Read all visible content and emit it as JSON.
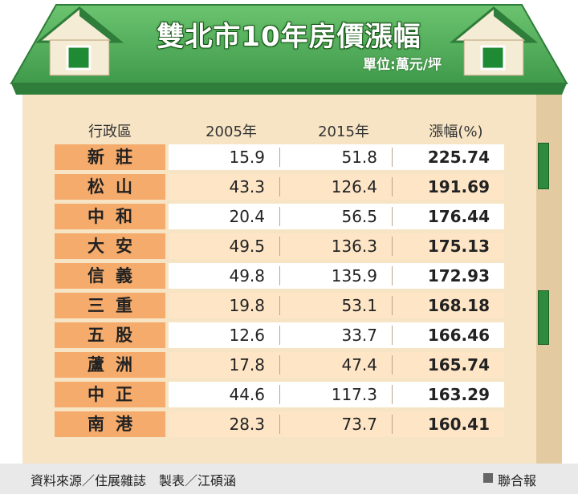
{
  "title": "雙北市10年房價漲幅",
  "unit": "單位:萬元/坪",
  "headers": [
    "行政區",
    "2005年",
    "2015年",
    "漲幅(%)"
  ],
  "rows": [
    {
      "district": "新莊",
      "y2005": "15.9",
      "y2015": "51.8",
      "change": "225.74"
    },
    {
      "district": "松山",
      "y2005": "43.3",
      "y2015": "126.4",
      "change": "191.69"
    },
    {
      "district": "中和",
      "y2005": "20.4",
      "y2015": "56.5",
      "change": "176.44"
    },
    {
      "district": "大安",
      "y2005": "49.5",
      "y2015": "136.3",
      "change": "175.13"
    },
    {
      "district": "信義",
      "y2005": "49.8",
      "y2015": "135.9",
      "change": "172.93"
    },
    {
      "district": "三重",
      "y2005": "19.8",
      "y2015": "53.1",
      "change": "168.18"
    },
    {
      "district": "五股",
      "y2005": "12.6",
      "y2015": "33.7",
      "change": "166.46"
    },
    {
      "district": "蘆洲",
      "y2005": "17.8",
      "y2015": "47.4",
      "change": "165.74"
    },
    {
      "district": "中正",
      "y2005": "44.6",
      "y2015": "117.3",
      "change": "163.29"
    },
    {
      "district": "南港",
      "y2005": "28.3",
      "y2015": "73.7",
      "change": "160.41"
    }
  ],
  "footer": {
    "source": "資料來源／住展雜誌　製表／江碩涵",
    "brand": "聯合報"
  },
  "colors": {
    "roof_green": "#4fa65a",
    "roof_dark": "#2f7d3a",
    "district_cell": "#f5ab6b",
    "row_alt": "#fde5c6",
    "wall": "#f6e4c4"
  }
}
